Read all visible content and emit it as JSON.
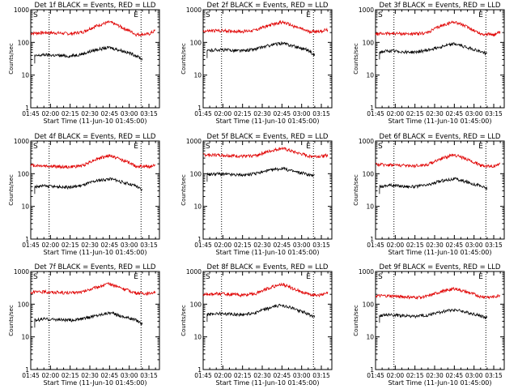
{
  "figure": {
    "background": "#ffffff",
    "axis_color": "#000000",
    "events_color": "#000000",
    "lld_color": "#e00000"
  },
  "chart_data": [
    {
      "type": "line",
      "title": "Det 1f BLACK = Events, RED = LLD",
      "xlabel": "Start Time (11-Jun-10 01:45:00)",
      "ylabel": "Counts/sec",
      "yscale": "log",
      "ylim": [
        1,
        1000
      ],
      "x_ticks": [
        "01:45",
        "02:00",
        "02:15",
        "02:30",
        "02:45",
        "03:00",
        "03:15"
      ],
      "y_ticks": [
        "1",
        "10",
        "100",
        "1000"
      ],
      "markers": [
        "S",
        "E"
      ],
      "series": [
        {
          "name": "LLD",
          "x": [
            "01:45",
            "01:55",
            "02:05",
            "02:15",
            "02:25",
            "02:35",
            "02:45",
            "02:55",
            "03:05",
            "03:15",
            "03:20"
          ],
          "values": [
            190,
            200,
            195,
            185,
            210,
            320,
            420,
            280,
            175,
            180,
            230
          ]
        },
        {
          "name": "Events",
          "x": [
            "01:48",
            "01:55",
            "02:05",
            "02:15",
            "02:25",
            "02:35",
            "02:45",
            "02:55",
            "03:05",
            "03:10"
          ],
          "values": [
            38,
            42,
            40,
            38,
            45,
            60,
            70,
            55,
            40,
            30
          ]
        }
      ]
    },
    {
      "type": "line",
      "title": "Det 2f BLACK = Events, RED = LLD",
      "xlabel": "Start Time (11-Jun-10 01:45:00)",
      "ylabel": "Counts/sec",
      "yscale": "log",
      "ylim": [
        1,
        1000
      ],
      "x_ticks": [
        "01:45",
        "02:00",
        "02:15",
        "02:30",
        "02:45",
        "03:00",
        "03:15"
      ],
      "y_ticks": [
        "1",
        "10",
        "100",
        "1000"
      ],
      "markers": [
        "S",
        "E"
      ],
      "series": [
        {
          "name": "LLD",
          "x": [
            "01:45",
            "01:55",
            "02:05",
            "02:15",
            "02:25",
            "02:35",
            "02:45",
            "02:55",
            "03:05",
            "03:15",
            "03:20"
          ],
          "values": [
            220,
            230,
            225,
            215,
            240,
            330,
            420,
            300,
            215,
            220,
            250
          ]
        },
        {
          "name": "Events",
          "x": [
            "01:48",
            "01:55",
            "02:05",
            "02:15",
            "02:25",
            "02:35",
            "02:45",
            "02:55",
            "03:05",
            "03:10"
          ],
          "values": [
            55,
            60,
            58,
            55,
            62,
            80,
            95,
            75,
            58,
            40
          ]
        }
      ]
    },
    {
      "type": "line",
      "title": "Det 3f BLACK = Events, RED = LLD",
      "xlabel": "Start Time (11-Jun-10 01:45:00)",
      "ylabel": "Counts/sec",
      "yscale": "log",
      "ylim": [
        1,
        1000
      ],
      "x_ticks": [
        "01:45",
        "02:00",
        "02:15",
        "02:30",
        "02:45",
        "03:00",
        "03:15"
      ],
      "y_ticks": [
        "1",
        "10",
        "100",
        "1000"
      ],
      "markers": [
        "S",
        "E"
      ],
      "series": [
        {
          "name": "LLD",
          "x": [
            "01:45",
            "01:55",
            "02:05",
            "02:15",
            "02:25",
            "02:35",
            "02:45",
            "02:55",
            "03:05",
            "03:15",
            "03:20"
          ],
          "values": [
            180,
            190,
            185,
            180,
            200,
            320,
            430,
            290,
            180,
            175,
            200
          ]
        },
        {
          "name": "Events",
          "x": [
            "01:48",
            "01:55",
            "02:05",
            "02:15",
            "02:25",
            "02:35",
            "02:45",
            "02:55",
            "03:05",
            "03:10"
          ],
          "values": [
            50,
            55,
            52,
            50,
            58,
            75,
            90,
            70,
            52,
            45
          ]
        }
      ]
    },
    {
      "type": "line",
      "title": "Det 4f BLACK = Events, RED = LLD",
      "xlabel": "Start Time (11-Jun-10 01:45:00)",
      "ylabel": "Counts/sec",
      "yscale": "log",
      "ylim": [
        1,
        1000
      ],
      "x_ticks": [
        "01:45",
        "02:00",
        "02:15",
        "02:30",
        "02:45",
        "03:00",
        "03:15"
      ],
      "y_ticks": [
        "1",
        "10",
        "100",
        "1000"
      ],
      "markers": [
        "S",
        "E"
      ],
      "series": [
        {
          "name": "LLD",
          "x": [
            "01:45",
            "01:55",
            "02:05",
            "02:15",
            "02:25",
            "02:35",
            "02:45",
            "02:55",
            "03:05",
            "03:15",
            "03:20"
          ],
          "values": [
            180,
            175,
            165,
            160,
            180,
            280,
            360,
            260,
            170,
            165,
            190
          ]
        },
        {
          "name": "Events",
          "x": [
            "01:48",
            "01:55",
            "02:05",
            "02:15",
            "02:25",
            "02:35",
            "02:45",
            "02:55",
            "03:05",
            "03:10"
          ],
          "values": [
            40,
            42,
            40,
            38,
            45,
            60,
            70,
            55,
            42,
            30
          ]
        }
      ]
    },
    {
      "type": "line",
      "title": "Det 5f BLACK = Events, RED = LLD",
      "xlabel": "Start Time (11-Jun-10 01:45:00)",
      "ylabel": "Counts/sec",
      "yscale": "log",
      "ylim": [
        1,
        1000
      ],
      "x_ticks": [
        "01:45",
        "02:00",
        "02:15",
        "02:30",
        "02:45",
        "03:00",
        "03:15"
      ],
      "y_ticks": [
        "1",
        "10",
        "100",
        "1000"
      ],
      "markers": [
        "S",
        "E"
      ],
      "series": [
        {
          "name": "LLD",
          "x": [
            "01:45",
            "01:55",
            "02:05",
            "02:15",
            "02:25",
            "02:35",
            "02:45",
            "02:55",
            "03:05",
            "03:15",
            "03:20"
          ],
          "values": [
            380,
            375,
            360,
            340,
            360,
            480,
            600,
            450,
            350,
            340,
            370
          ]
        },
        {
          "name": "Events",
          "x": [
            "01:48",
            "01:55",
            "02:05",
            "02:15",
            "02:25",
            "02:35",
            "02:45",
            "02:55",
            "03:05",
            "03:10"
          ],
          "values": [
            95,
            100,
            95,
            90,
            100,
            125,
            145,
            115,
            95,
            85
          ]
        }
      ]
    },
    {
      "type": "line",
      "title": "Det 6f BLACK = Events, RED = LLD",
      "xlabel": "Start Time (11-Jun-10 01:45:00)",
      "ylabel": "Counts/sec",
      "yscale": "log",
      "ylim": [
        1,
        1000
      ],
      "x_ticks": [
        "01:45",
        "02:00",
        "02:15",
        "02:30",
        "02:45",
        "03:00",
        "03:15"
      ],
      "y_ticks": [
        "1",
        "10",
        "100",
        "1000"
      ],
      "markers": [
        "S",
        "E"
      ],
      "series": [
        {
          "name": "LLD",
          "x": [
            "01:45",
            "01:55",
            "02:05",
            "02:15",
            "02:25",
            "02:35",
            "02:45",
            "02:55",
            "03:05",
            "03:15",
            "03:20"
          ],
          "values": [
            190,
            190,
            180,
            175,
            190,
            290,
            380,
            270,
            180,
            170,
            200
          ]
        },
        {
          "name": "Events",
          "x": [
            "01:48",
            "01:55",
            "02:05",
            "02:15",
            "02:25",
            "02:35",
            "02:45",
            "02:55",
            "03:05",
            "03:10"
          ],
          "values": [
            40,
            45,
            42,
            40,
            45,
            60,
            70,
            55,
            42,
            35
          ]
        }
      ]
    },
    {
      "type": "line",
      "title": "Det 7f BLACK = Events, RED = LLD",
      "xlabel": "Start Time (11-Jun-10 01:45:00)",
      "ylabel": "Counts/sec",
      "yscale": "log",
      "ylim": [
        1,
        1000
      ],
      "x_ticks": [
        "01:45",
        "02:00",
        "02:15",
        "02:30",
        "02:45",
        "03:00",
        "03:15"
      ],
      "y_ticks": [
        "1",
        "10",
        "100",
        "1000"
      ],
      "markers": [
        "S",
        "E"
      ],
      "series": [
        {
          "name": "LLD",
          "x": [
            "01:45",
            "01:55",
            "02:05",
            "02:15",
            "02:25",
            "02:35",
            "02:45",
            "02:55",
            "03:05",
            "03:15",
            "03:20"
          ],
          "values": [
            230,
            240,
            230,
            220,
            240,
            330,
            420,
            300,
            220,
            210,
            250
          ]
        },
        {
          "name": "Events",
          "x": [
            "01:48",
            "01:55",
            "02:05",
            "02:15",
            "02:25",
            "02:35",
            "02:45",
            "02:55",
            "03:05",
            "03:10"
          ],
          "values": [
            32,
            35,
            34,
            32,
            36,
            45,
            55,
            42,
            33,
            25
          ]
        }
      ]
    },
    {
      "type": "line",
      "title": "Det 8f BLACK = Events, RED = LLD",
      "xlabel": "Start Time (11-Jun-10 01:45:00)",
      "ylabel": "Counts/sec",
      "yscale": "log",
      "ylim": [
        1,
        1000
      ],
      "x_ticks": [
        "01:45",
        "02:00",
        "02:15",
        "02:30",
        "02:45",
        "03:00",
        "03:15"
      ],
      "y_ticks": [
        "1",
        "10",
        "100",
        "1000"
      ],
      "markers": [
        "S",
        "E"
      ],
      "series": [
        {
          "name": "LLD",
          "x": [
            "01:45",
            "01:55",
            "02:05",
            "02:15",
            "02:25",
            "02:35",
            "02:45",
            "02:55",
            "03:05",
            "03:15",
            "03:20"
          ],
          "values": [
            200,
            210,
            200,
            190,
            210,
            310,
            410,
            280,
            200,
            190,
            220
          ]
        },
        {
          "name": "Events",
          "x": [
            "01:48",
            "01:55",
            "02:05",
            "02:15",
            "02:25",
            "02:35",
            "02:45",
            "02:55",
            "03:05",
            "03:10"
          ],
          "values": [
            48,
            52,
            50,
            48,
            55,
            75,
            95,
            70,
            50,
            40
          ]
        }
      ]
    },
    {
      "type": "line",
      "title": "Det 9f BLACK = Events, RED = LLD",
      "xlabel": "Start Time (11-Jun-10 01:45:00)",
      "ylabel": "Counts/sec",
      "yscale": "log",
      "ylim": [
        1,
        1000
      ],
      "x_ticks": [
        "01:45",
        "02:00",
        "02:15",
        "02:30",
        "02:45",
        "03:00",
        "03:15"
      ],
      "y_ticks": [
        "1",
        "10",
        "100",
        "1000"
      ],
      "markers": [
        "S",
        "E"
      ],
      "series": [
        {
          "name": "LLD",
          "x": [
            "01:45",
            "01:55",
            "02:05",
            "02:15",
            "02:25",
            "02:35",
            "02:45",
            "02:55",
            "03:05",
            "03:15",
            "03:20"
          ],
          "values": [
            180,
            180,
            170,
            160,
            175,
            240,
            300,
            230,
            170,
            165,
            190
          ]
        },
        {
          "name": "Events",
          "x": [
            "01:48",
            "01:55",
            "02:05",
            "02:15",
            "02:25",
            "02:35",
            "02:45",
            "02:55",
            "03:05",
            "03:10"
          ],
          "values": [
            45,
            48,
            45,
            42,
            46,
            58,
            68,
            55,
            44,
            38
          ]
        }
      ]
    }
  ]
}
